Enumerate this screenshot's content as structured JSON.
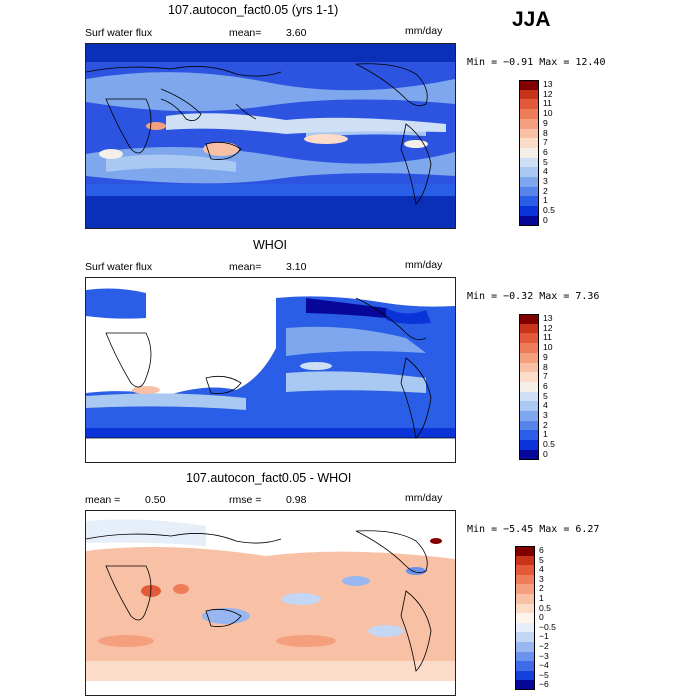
{
  "season": "JJA",
  "panels": [
    {
      "title": "107.autocon_fact0.05 (yrs 1-1)",
      "left_label": "Surf water flux",
      "mid_label": "mean=",
      "mid_value": "3.60",
      "units": "mm/day",
      "minmax": "Min =  −0.91 Max =   12.40",
      "colorbar": {
        "levels": [
          "13",
          "12",
          "11",
          "10",
          "9",
          "8",
          "7",
          "6",
          "5",
          "4",
          "3",
          "2",
          "1",
          "0.5",
          "0"
        ],
        "colors": [
          "#800000",
          "#c8341a",
          "#e25a3a",
          "#ee7d5a",
          "#f4a07f",
          "#f8c0a4",
          "#fbdcc8",
          "#f4f0e8",
          "#cfe0f6",
          "#a9c8f2",
          "#7ea7ee",
          "#5684ea",
          "#2a5ee6",
          "#0a34d8",
          "#07079a"
        ]
      }
    },
    {
      "title": "WHOI",
      "left_label": "Surf water flux",
      "mid_label": "mean=",
      "mid_value": "3.10",
      "units": "mm/day",
      "minmax": "Min =  −0.32 Max =    7.36",
      "colorbar": {
        "levels": [
          "13",
          "12",
          "11",
          "10",
          "9",
          "8",
          "7",
          "6",
          "5",
          "4",
          "3",
          "2",
          "1",
          "0.5",
          "0"
        ],
        "colors": [
          "#800000",
          "#c8341a",
          "#e25a3a",
          "#ee7d5a",
          "#f4a07f",
          "#f8c0a4",
          "#fbdcc8",
          "#f4f0e8",
          "#cfe0f6",
          "#a9c8f2",
          "#7ea7ee",
          "#5684ea",
          "#2a5ee6",
          "#0a34d8",
          "#07079a"
        ]
      }
    },
    {
      "title": "107.autocon_fact0.05 - WHOI",
      "left_label": "mean =",
      "left_value": "0.50",
      "mid_label": "rmse =",
      "mid_value": "0.98",
      "units": "mm/day",
      "minmax": "Min =  −5.45 Max =    6.27",
      "colorbar": {
        "levels": [
          "6",
          "5",
          "4",
          "3",
          "2",
          "1",
          "0.5",
          "0",
          "−0.5",
          "−1",
          "−2",
          "−3",
          "−4",
          "−5",
          "−6"
        ],
        "colors": [
          "#800000",
          "#c8341a",
          "#e25a3a",
          "#ee7d5a",
          "#f4a07f",
          "#f8c0a4",
          "#fbdcc8",
          "#fdf4ec",
          "#e6eefa",
          "#c3d6f4",
          "#98b6f0",
          "#6b92ec",
          "#3f6ae8",
          "#1540dc",
          "#07079a"
        ]
      }
    }
  ]
}
